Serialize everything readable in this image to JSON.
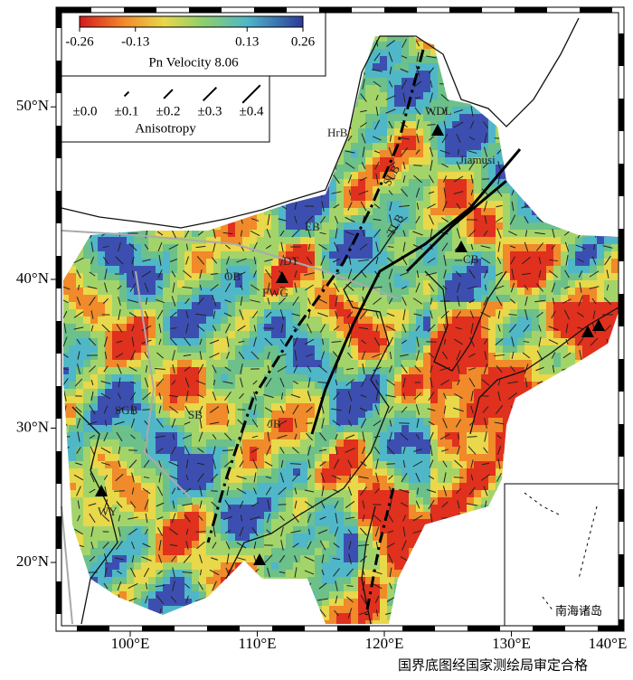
{
  "colorbar": {
    "ticks": [
      -0.26,
      -0.13,
      0.13,
      0.26
    ],
    "title": "Pn Velocity 8.06"
  },
  "anisotropy": {
    "labels": [
      "±0.0",
      "±0.1",
      "±0.2",
      "±0.3",
      "±0.4"
    ],
    "title": "Anisotropy"
  },
  "axes": {
    "lat_ticks": [
      {
        "value": 20,
        "label": "20°N"
      },
      {
        "value": 30,
        "label": "30°N"
      },
      {
        "value": 40,
        "label": "40°N"
      },
      {
        "value": 50,
        "label": "50°N"
      }
    ],
    "lon_ticks": [
      {
        "value": 100,
        "label": "100°E"
      },
      {
        "value": 110,
        "label": "110°E"
      },
      {
        "value": 120,
        "label": "120°E"
      },
      {
        "value": 130,
        "label": "130°E"
      },
      {
        "value": 140,
        "label": "140°E"
      }
    ]
  },
  "regions": [
    "HrB",
    "WDL",
    "Jiamusi",
    "SLB",
    "EB",
    "OB",
    "DT",
    "FWG",
    "TLB",
    "CB",
    "SGB",
    "SB",
    "JB",
    "WY"
  ],
  "inset_label": "南海诸岛",
  "footer": "国界底图经国家测绘局审定合格"
}
